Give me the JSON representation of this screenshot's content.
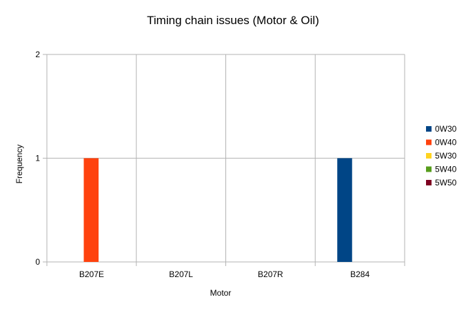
{
  "chart_data": {
    "type": "bar",
    "title": "Timing chain issues (Motor & Oil)",
    "xlabel": "Motor",
    "ylabel": "Frequency",
    "categories": [
      "B207E",
      "B207L",
      "B207R",
      "B284"
    ],
    "series": [
      {
        "name": "0W30",
        "color": "#004586",
        "values": [
          0,
          0,
          0,
          1
        ]
      },
      {
        "name": "0W40",
        "color": "#ff420e",
        "values": [
          1,
          0,
          0,
          0
        ]
      },
      {
        "name": "5W30",
        "color": "#ffd320",
        "values": [
          0,
          0,
          0,
          0
        ]
      },
      {
        "name": "5W40",
        "color": "#579d1c",
        "values": [
          0,
          0,
          0,
          0
        ]
      },
      {
        "name": "5W50",
        "color": "#7e0021",
        "values": [
          0,
          0,
          0,
          0
        ]
      }
    ],
    "yticks": [
      "0",
      "1",
      "2"
    ],
    "ylim": [
      0,
      2
    ],
    "grid": true,
    "legend_position": "right"
  }
}
